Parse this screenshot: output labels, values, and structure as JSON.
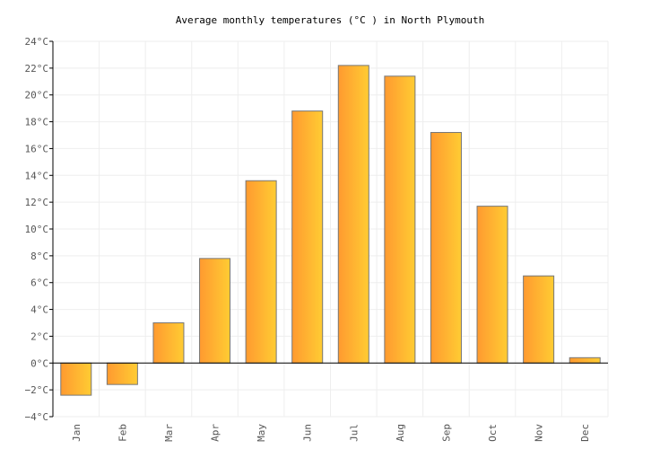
{
  "chart_data": {
    "type": "bar",
    "title": "Average monthly temperatures (°C ) in North Plymouth",
    "categories": [
      "Jan",
      "Feb",
      "Mar",
      "Apr",
      "May",
      "Jun",
      "Jul",
      "Aug",
      "Sep",
      "Oct",
      "Nov",
      "Dec"
    ],
    "values": [
      -2.4,
      -1.6,
      3.0,
      7.8,
      13.6,
      18.8,
      22.2,
      21.4,
      17.2,
      11.7,
      6.5,
      0.4
    ],
    "ylim": [
      -4,
      24
    ],
    "yticks": [
      "24°C",
      "22°C",
      "20°C",
      "18°C",
      "16°C",
      "14°C",
      "12°C",
      "10°C",
      "8°C",
      "6°C",
      "4°C",
      "2°C",
      "0°C",
      "−2°C",
      "−4°C"
    ],
    "unit": "°C",
    "grid": true,
    "colors": {
      "bar_start": "#ff9a30",
      "bar_end": "#ffcc33",
      "bar_stroke": "#777777",
      "grid": "#eeeeee"
    }
  }
}
